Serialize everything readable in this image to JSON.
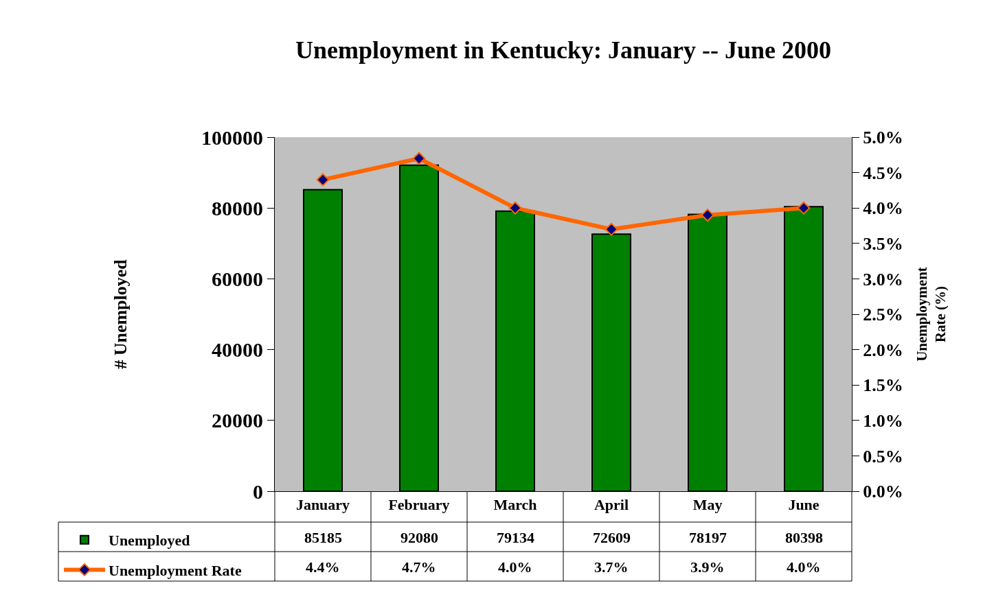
{
  "chart_data": {
    "type": "bar",
    "title": "Unemployment in Kentucky: January -- June 2000",
    "ylabel": "# Unemployed",
    "y2label": "Unemployment\nRate (%)",
    "categories": [
      "January",
      "February",
      "March",
      "April",
      "May",
      "June"
    ],
    "series": [
      {
        "name": "Unemployed",
        "color": "#008000",
        "values": [
          85185,
          92080,
          79134,
          72609,
          78197,
          80398
        ],
        "value_labels": [
          "85185",
          "92080",
          "79134",
          "72609",
          "78197",
          "80398"
        ]
      },
      {
        "name": "Unemployment Rate",
        "type": "line",
        "axis": "y2",
        "color": "#ff6600",
        "marker": "diamond",
        "values": [
          4.4,
          4.7,
          4.0,
          3.7,
          3.9,
          4.0
        ],
        "value_labels": [
          "4.4%",
          "4.7%",
          "4.0%",
          "3.7%",
          "3.9%",
          "4.0%"
        ]
      }
    ],
    "ylim": [
      0,
      100000
    ],
    "yticks": [
      0,
      20000,
      40000,
      60000,
      80000,
      100000
    ],
    "y2lim": [
      0,
      5
    ],
    "y2ticks": [
      {
        "value": 0,
        "label": "0.0%"
      },
      {
        "value": 0.5,
        "label": "0.5%"
      },
      {
        "value": 1,
        "label": "1.0%"
      },
      {
        "value": 1.5,
        "label": "1.5%"
      },
      {
        "value": 2,
        "label": "2.0%"
      },
      {
        "value": 2.5,
        "label": "2.5%"
      },
      {
        "value": 3,
        "label": "3.0%"
      },
      {
        "value": 3.5,
        "label": "3.5%"
      },
      {
        "value": 4,
        "label": "4.0%"
      },
      {
        "value": 4.5,
        "label": "4.5%"
      },
      {
        "value": 5,
        "label": "5.0%"
      }
    ],
    "grid": false,
    "legend": "bottom left"
  }
}
